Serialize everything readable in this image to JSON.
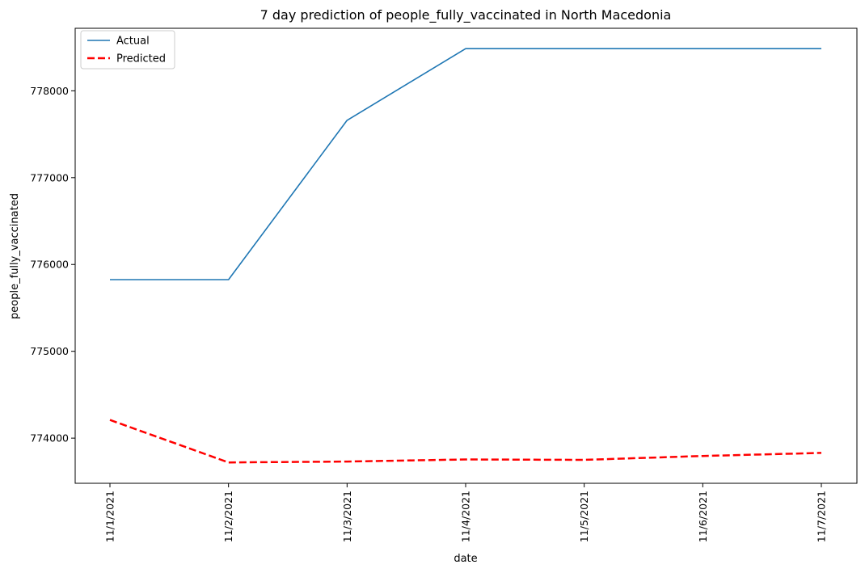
{
  "chart_data": {
    "type": "line",
    "title": "7 day prediction of people_fully_vaccinated in North Macedonia",
    "xlabel": "date",
    "ylabel": "people_fully_vaccinated",
    "categories": [
      "11/1/2021",
      "11/2/2021",
      "11/3/2021",
      "11/4/2021",
      "11/5/2021",
      "11/6/2021",
      "11/7/2021"
    ],
    "y_ticks": [
      774000,
      775000,
      776000,
      777000,
      778000
    ],
    "ylim": [
      773480,
      778720
    ],
    "grid": false,
    "legend_position": "top-left",
    "series": [
      {
        "name": "Actual",
        "color": "#1f77b4",
        "style": "solid",
        "values": [
          775825,
          775825,
          777660,
          778485,
          778485,
          778485,
          778485
        ]
      },
      {
        "name": "Predicted",
        "color": "#ff0000",
        "style": "dashed",
        "values": [
          774210,
          773720,
          773730,
          773755,
          773750,
          773795,
          773830
        ]
      }
    ]
  }
}
